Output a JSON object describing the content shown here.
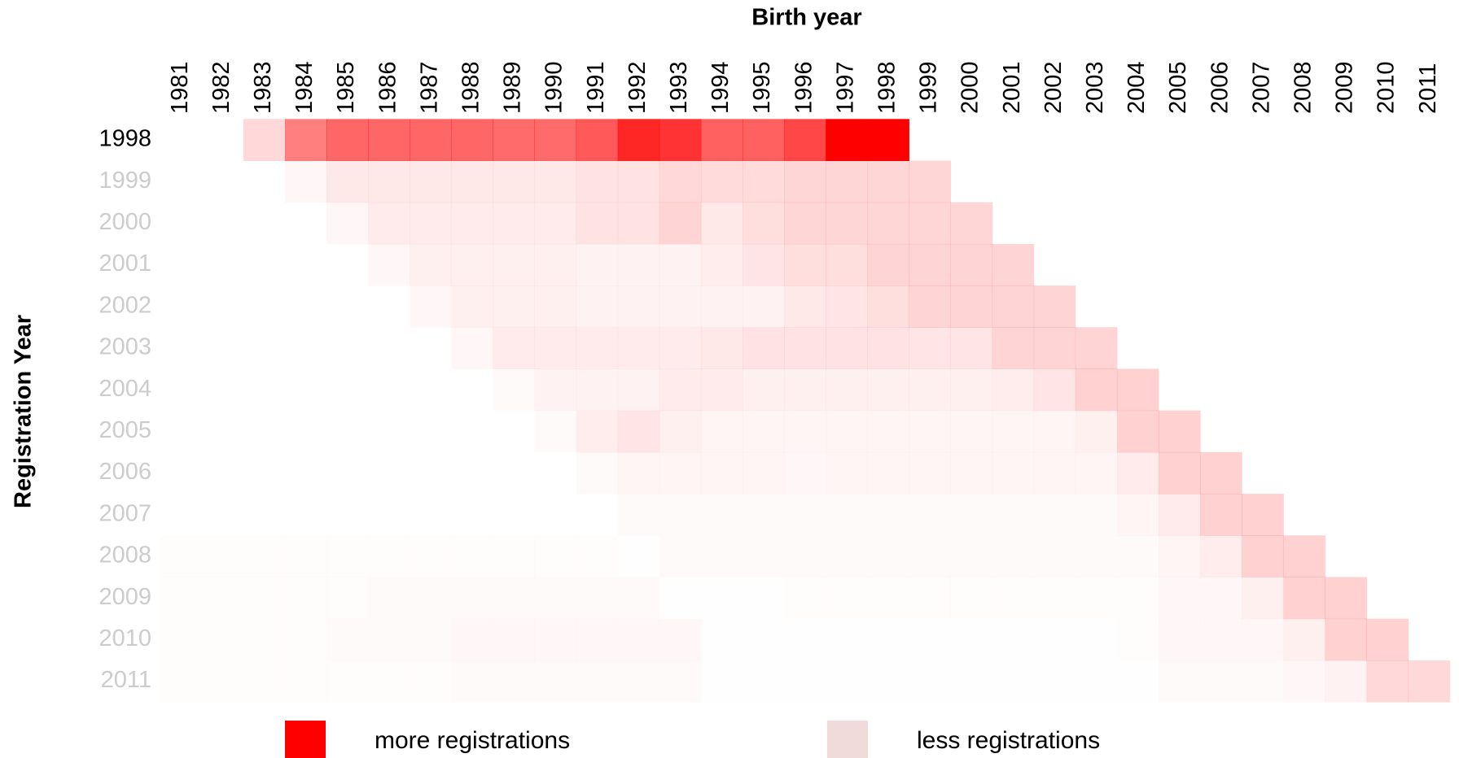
{
  "chart_data": {
    "type": "heatmap",
    "title": "Birth year",
    "ylabel": "Registration Year",
    "color": "#ff0000",
    "x": [
      "1981",
      "1982",
      "1983",
      "1984",
      "1985",
      "1986",
      "1987",
      "1988",
      "1989",
      "1990",
      "1991",
      "1992",
      "1993",
      "1994",
      "1995",
      "1996",
      "1997",
      "1998",
      "1999",
      "2000",
      "2001",
      "2002",
      "2003",
      "2004",
      "2005",
      "2006",
      "2007",
      "2008",
      "2009",
      "2010",
      "2011"
    ],
    "y": [
      "1998",
      "1999",
      "2000",
      "2001",
      "2002",
      "2003",
      "2004",
      "2005",
      "2006",
      "2007",
      "2008",
      "2009",
      "2010",
      "2011"
    ],
    "y_label_colors": [
      "#000000",
      "#cccccc",
      "#cccccc",
      "#cccccc",
      "#cccccc",
      "#cccccc",
      "#cccccc",
      "#cccccc",
      "#cccccc",
      "#cccccc",
      "#cccccc",
      "#cccccc",
      "#cccccc",
      "#cccccc"
    ],
    "values": [
      [
        null,
        null,
        15,
        50,
        60,
        60,
        60,
        60,
        58,
        58,
        65,
        85,
        80,
        62,
        62,
        72,
        100,
        100,
        null,
        null,
        null,
        null,
        null,
        null,
        null,
        null,
        null,
        null,
        null,
        null,
        null
      ],
      [
        null,
        null,
        null,
        3,
        9,
        9,
        9,
        9,
        9,
        9,
        11,
        11,
        15,
        14,
        14,
        16,
        16,
        16,
        16,
        null,
        null,
        null,
        null,
        null,
        null,
        null,
        null,
        null,
        null,
        null,
        null
      ],
      [
        null,
        null,
        null,
        null,
        3,
        8,
        8,
        8,
        8,
        8,
        11,
        11,
        17,
        9,
        13,
        16,
        16,
        16,
        16,
        16,
        null,
        null,
        null,
        null,
        null,
        null,
        null,
        null,
        null,
        null,
        null
      ],
      [
        null,
        null,
        null,
        null,
        null,
        3,
        6,
        6,
        6,
        6,
        5,
        5,
        5,
        7,
        10,
        13,
        13,
        17,
        17,
        17,
        17,
        null,
        null,
        null,
        null,
        null,
        null,
        null,
        null,
        null,
        null
      ],
      [
        null,
        null,
        null,
        null,
        null,
        null,
        3,
        6,
        6,
        6,
        5,
        5,
        5,
        5,
        5,
        9,
        10,
        13,
        17,
        17,
        17,
        17,
        null,
        null,
        null,
        null,
        null,
        null,
        null,
        null,
        null
      ],
      [
        null,
        null,
        null,
        null,
        null,
        null,
        null,
        3,
        8,
        8,
        8,
        8,
        8,
        9,
        11,
        11,
        11,
        11,
        10,
        10,
        17,
        17,
        17,
        null,
        null,
        null,
        null,
        null,
        null,
        null,
        null
      ],
      [
        null,
        null,
        null,
        null,
        null,
        null,
        null,
        null,
        2,
        5,
        5,
        5,
        8,
        8,
        6,
        6,
        6,
        6,
        6,
        6,
        7,
        10,
        18,
        18,
        null,
        null,
        null,
        null,
        null,
        null,
        null
      ],
      [
        null,
        null,
        null,
        null,
        null,
        null,
        null,
        null,
        null,
        2,
        7,
        10,
        6,
        4,
        4,
        4,
        4,
        4,
        4,
        4,
        4,
        4,
        6,
        18,
        18,
        null,
        null,
        null,
        null,
        null,
        null
      ],
      [
        null,
        null,
        null,
        null,
        null,
        null,
        null,
        null,
        null,
        null,
        2,
        4,
        4,
        4,
        4,
        3,
        4,
        4,
        4,
        4,
        4,
        4,
        4,
        8,
        18,
        18,
        null,
        null,
        null,
        null,
        null
      ],
      [
        null,
        null,
        null,
        null,
        null,
        null,
        null,
        null,
        null,
        null,
        null,
        2,
        2,
        2,
        2,
        2,
        2,
        2,
        2,
        2,
        2,
        2,
        2,
        4,
        8,
        18,
        18,
        null,
        null,
        null,
        null
      ],
      [
        1,
        1,
        1,
        1,
        1,
        1,
        1,
        1,
        1,
        1,
        1,
        0.5,
        2,
        2,
        2,
        2,
        2,
        2,
        2,
        2,
        2,
        2,
        2,
        2,
        4,
        7,
        18,
        18,
        null,
        null,
        null
      ],
      [
        1,
        1,
        1,
        1,
        1,
        2,
        2,
        2,
        2,
        2,
        2,
        2,
        0.5,
        0.5,
        0.5,
        1,
        1,
        1,
        1,
        1,
        1,
        1,
        1,
        1,
        3,
        3,
        6,
        18,
        18,
        null,
        null
      ],
      [
        1,
        1,
        1,
        1,
        2,
        2,
        2,
        3,
        3,
        3,
        3,
        3,
        3,
        0.5,
        0.5,
        0.5,
        0.5,
        0.5,
        0.5,
        0.5,
        0.5,
        0.5,
        0.5,
        1,
        3,
        3,
        3,
        6,
        18,
        18,
        null
      ],
      [
        1,
        1,
        1,
        1,
        1,
        1,
        1,
        2,
        2,
        2,
        2,
        2,
        2,
        0.5,
        0.5,
        0.5,
        0.5,
        0.5,
        0.5,
        0.5,
        0.5,
        0.5,
        0.5,
        0.5,
        2,
        2,
        2,
        3,
        5,
        15,
        15
      ]
    ],
    "legend": [
      {
        "label": "more registrations",
        "color": "#ff0000"
      },
      {
        "label": "less registrations",
        "color": "#f0dada"
      }
    ]
  }
}
